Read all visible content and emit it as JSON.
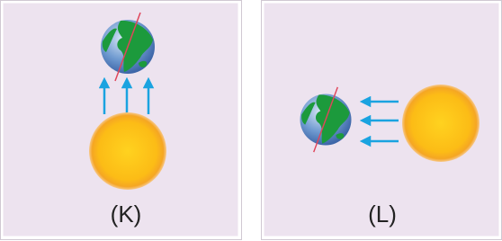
{
  "panels": [
    {
      "label": "(K)"
    },
    {
      "label": "(L)"
    }
  ]
}
